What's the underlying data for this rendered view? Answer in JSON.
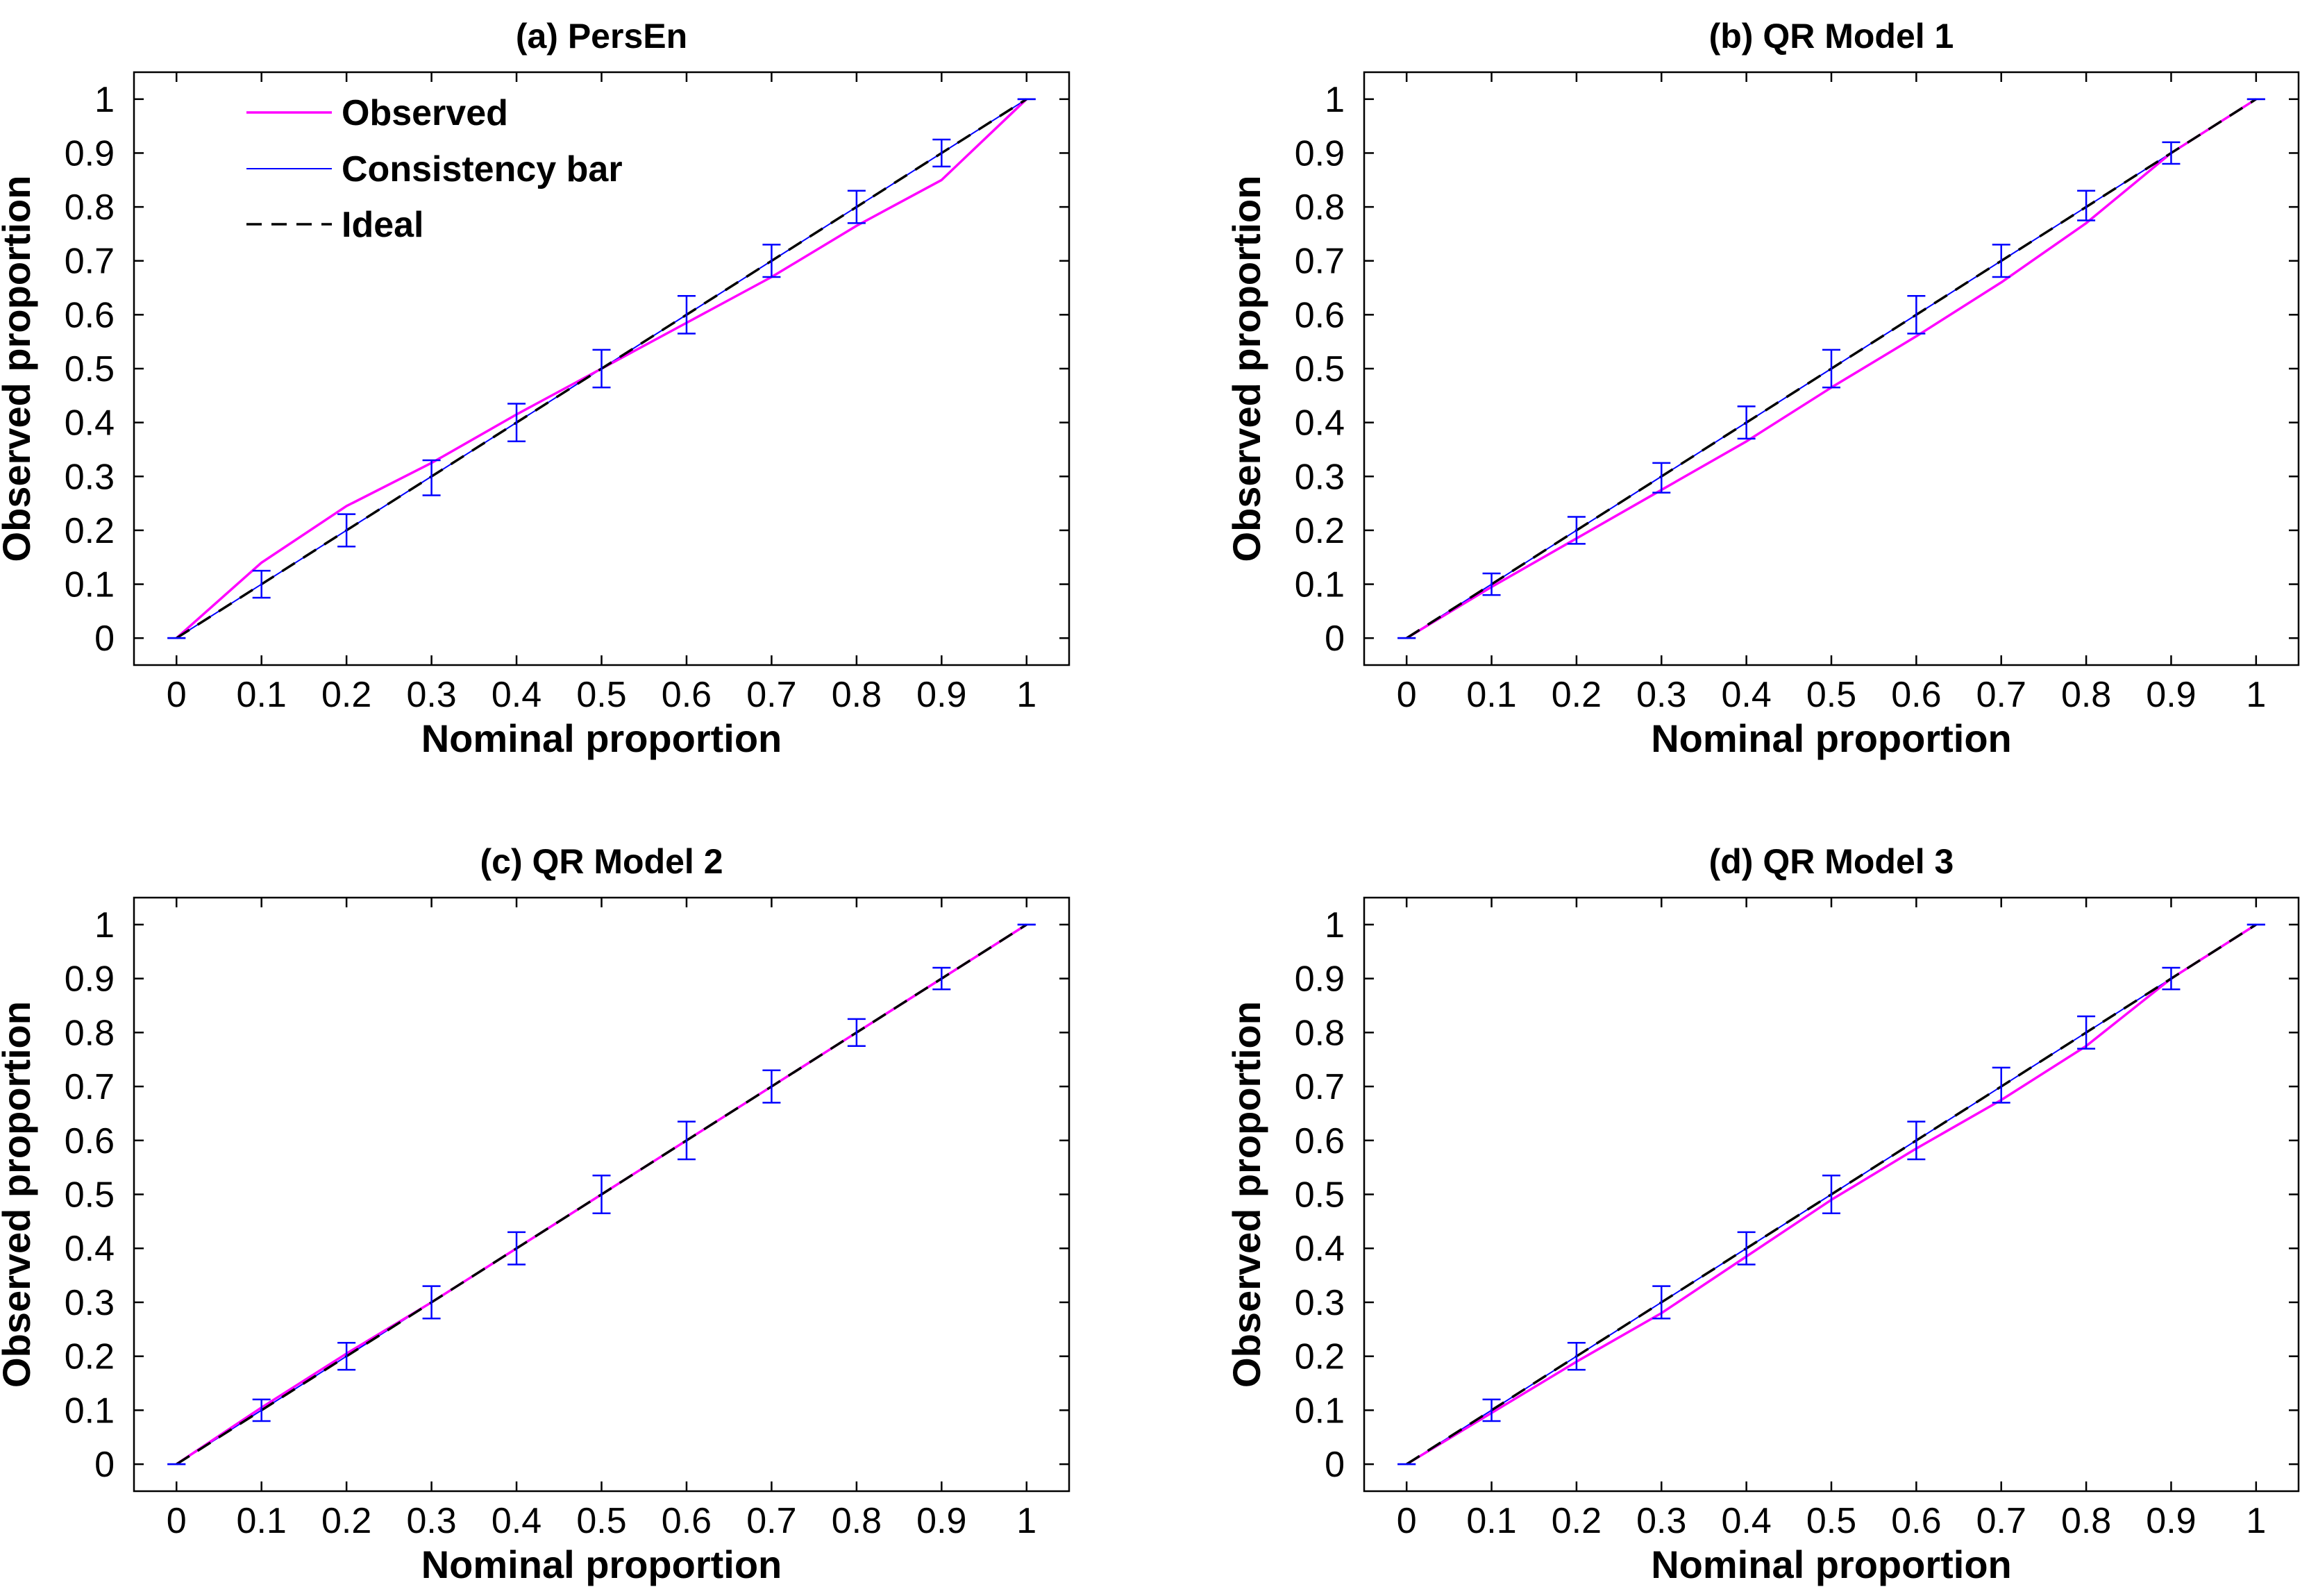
{
  "colors": {
    "observed": "#ff00ff",
    "consistency": "#0000ff",
    "ideal": "#000000",
    "axes": "#000000",
    "background": "#ffffff"
  },
  "legend": {
    "observed": "Observed",
    "consistency": "Consistency bar",
    "ideal": "Ideal"
  },
  "chart_data": [
    {
      "type": "line",
      "title": "(a) PersEn",
      "xlabel": "Nominal proportion",
      "ylabel": "Observed proportion",
      "xlim": [
        -0.05,
        1.05
      ],
      "ylim": [
        -0.05,
        1.05
      ],
      "xticks": [
        0,
        0.1,
        0.2,
        0.3,
        0.4,
        0.5,
        0.6,
        0.7,
        0.8,
        0.9,
        1
      ],
      "xtick_labels": [
        "0",
        "0.1",
        "0.2",
        "0.3",
        "0.4",
        "0.5",
        "0.6",
        "0.7",
        "0.8",
        "0.9",
        "1"
      ],
      "yticks": [
        0,
        0.1,
        0.2,
        0.3,
        0.4,
        0.5,
        0.6,
        0.7,
        0.8,
        0.9,
        1
      ],
      "ytick_labels": [
        "0",
        "0.1",
        "0.2",
        "0.3",
        "0.4",
        "0.5",
        "0.6",
        "0.7",
        "0.8",
        "0.9",
        "1"
      ],
      "legend_visible": true,
      "legend_position": "top-left",
      "x": [
        0,
        0.1,
        0.2,
        0.3,
        0.4,
        0.5,
        0.6,
        0.7,
        0.8,
        0.9,
        1
      ],
      "series": [
        {
          "name": "Observed",
          "values": [
            0,
            0.14,
            0.245,
            0.325,
            0.415,
            0.5,
            0.585,
            0.67,
            0.765,
            0.85,
            1
          ]
        },
        {
          "name": "Ideal",
          "values": [
            0,
            0.1,
            0.2,
            0.3,
            0.4,
            0.5,
            0.6,
            0.7,
            0.8,
            0.9,
            1
          ]
        }
      ],
      "consistency_bars": {
        "center": [
          0,
          0.1,
          0.2,
          0.3,
          0.4,
          0.5,
          0.6,
          0.7,
          0.8,
          0.9,
          1
        ],
        "lower": [
          0,
          0.075,
          0.17,
          0.265,
          0.365,
          0.465,
          0.565,
          0.67,
          0.77,
          0.875,
          1
        ],
        "upper": [
          0,
          0.125,
          0.23,
          0.33,
          0.435,
          0.535,
          0.635,
          0.73,
          0.83,
          0.925,
          1
        ]
      }
    },
    {
      "type": "line",
      "title": "(b) QR Model 1",
      "xlabel": "Nominal proportion",
      "ylabel": "Observed proportion",
      "xlim": [
        -0.05,
        1.05
      ],
      "ylim": [
        -0.05,
        1.05
      ],
      "xticks": [
        0,
        0.1,
        0.2,
        0.3,
        0.4,
        0.5,
        0.6,
        0.7,
        0.8,
        0.9,
        1
      ],
      "xtick_labels": [
        "0",
        "0.1",
        "0.2",
        "0.3",
        "0.4",
        "0.5",
        "0.6",
        "0.7",
        "0.8",
        "0.9",
        "1"
      ],
      "yticks": [
        0,
        0.1,
        0.2,
        0.3,
        0.4,
        0.5,
        0.6,
        0.7,
        0.8,
        0.9,
        1
      ],
      "ytick_labels": [
        "0",
        "0.1",
        "0.2",
        "0.3",
        "0.4",
        "0.5",
        "0.6",
        "0.7",
        "0.8",
        "0.9",
        "1"
      ],
      "legend_visible": false,
      "x": [
        0,
        0.1,
        0.2,
        0.3,
        0.4,
        0.5,
        0.6,
        0.7,
        0.8,
        0.9,
        1
      ],
      "series": [
        {
          "name": "Observed",
          "values": [
            0,
            0.095,
            0.185,
            0.275,
            0.365,
            0.465,
            0.56,
            0.66,
            0.77,
            0.9,
            1
          ]
        },
        {
          "name": "Ideal",
          "values": [
            0,
            0.1,
            0.2,
            0.3,
            0.4,
            0.5,
            0.6,
            0.7,
            0.8,
            0.9,
            1
          ]
        }
      ],
      "consistency_bars": {
        "center": [
          0,
          0.1,
          0.2,
          0.3,
          0.4,
          0.5,
          0.6,
          0.7,
          0.8,
          0.9,
          1
        ],
        "lower": [
          0,
          0.08,
          0.175,
          0.27,
          0.37,
          0.465,
          0.565,
          0.67,
          0.775,
          0.88,
          1
        ],
        "upper": [
          0,
          0.12,
          0.225,
          0.325,
          0.43,
          0.535,
          0.635,
          0.73,
          0.83,
          0.92,
          1
        ]
      }
    },
    {
      "type": "line",
      "title": "(c) QR Model 2",
      "xlabel": "Nominal proportion",
      "ylabel": "Observed proportion",
      "xlim": [
        -0.05,
        1.05
      ],
      "ylim": [
        -0.05,
        1.05
      ],
      "xticks": [
        0,
        0.1,
        0.2,
        0.3,
        0.4,
        0.5,
        0.6,
        0.7,
        0.8,
        0.9,
        1
      ],
      "xtick_labels": [
        "0",
        "0.1",
        "0.2",
        "0.3",
        "0.4",
        "0.5",
        "0.6",
        "0.7",
        "0.8",
        "0.9",
        "1"
      ],
      "yticks": [
        0,
        0.1,
        0.2,
        0.3,
        0.4,
        0.5,
        0.6,
        0.7,
        0.8,
        0.9,
        1
      ],
      "ytick_labels": [
        "0",
        "0.1",
        "0.2",
        "0.3",
        "0.4",
        "0.5",
        "0.6",
        "0.7",
        "0.8",
        "0.9",
        "1"
      ],
      "legend_visible": false,
      "x": [
        0,
        0.1,
        0.2,
        0.3,
        0.4,
        0.5,
        0.6,
        0.7,
        0.8,
        0.9,
        1
      ],
      "series": [
        {
          "name": "Observed",
          "values": [
            0,
            0.105,
            0.205,
            0.3,
            0.4,
            0.5,
            0.6,
            0.7,
            0.8,
            0.9,
            1
          ]
        },
        {
          "name": "Ideal",
          "values": [
            0,
            0.1,
            0.2,
            0.3,
            0.4,
            0.5,
            0.6,
            0.7,
            0.8,
            0.9,
            1
          ]
        }
      ],
      "consistency_bars": {
        "center": [
          0,
          0.1,
          0.2,
          0.3,
          0.4,
          0.5,
          0.6,
          0.7,
          0.8,
          0.9,
          1
        ],
        "lower": [
          0,
          0.08,
          0.175,
          0.27,
          0.37,
          0.465,
          0.565,
          0.67,
          0.775,
          0.88,
          1
        ],
        "upper": [
          0,
          0.12,
          0.225,
          0.33,
          0.43,
          0.535,
          0.635,
          0.73,
          0.825,
          0.92,
          1
        ]
      }
    },
    {
      "type": "line",
      "title": "(d) QR Model 3",
      "xlabel": "Nominal proportion",
      "ylabel": "Observed proportion",
      "xlim": [
        -0.05,
        1.05
      ],
      "ylim": [
        -0.05,
        1.05
      ],
      "xticks": [
        0,
        0.1,
        0.2,
        0.3,
        0.4,
        0.5,
        0.6,
        0.7,
        0.8,
        0.9,
        1
      ],
      "xtick_labels": [
        "0",
        "0.1",
        "0.2",
        "0.3",
        "0.4",
        "0.5",
        "0.6",
        "0.7",
        "0.8",
        "0.9",
        "1"
      ],
      "yticks": [
        0,
        0.1,
        0.2,
        0.3,
        0.4,
        0.5,
        0.6,
        0.7,
        0.8,
        0.9,
        1
      ],
      "ytick_labels": [
        "0",
        "0.1",
        "0.2",
        "0.3",
        "0.4",
        "0.5",
        "0.6",
        "0.7",
        "0.8",
        "0.9",
        "1"
      ],
      "legend_visible": false,
      "x": [
        0,
        0.1,
        0.2,
        0.3,
        0.4,
        0.5,
        0.6,
        0.7,
        0.8,
        0.9,
        1
      ],
      "series": [
        {
          "name": "Observed",
          "values": [
            0,
            0.095,
            0.19,
            0.28,
            0.385,
            0.49,
            0.585,
            0.675,
            0.775,
            0.9,
            1
          ]
        },
        {
          "name": "Ideal",
          "values": [
            0,
            0.1,
            0.2,
            0.3,
            0.4,
            0.5,
            0.6,
            0.7,
            0.8,
            0.9,
            1
          ]
        }
      ],
      "consistency_bars": {
        "center": [
          0,
          0.1,
          0.2,
          0.3,
          0.4,
          0.5,
          0.6,
          0.7,
          0.8,
          0.9,
          1
        ],
        "lower": [
          0,
          0.08,
          0.175,
          0.27,
          0.37,
          0.465,
          0.565,
          0.67,
          0.77,
          0.88,
          1
        ],
        "upper": [
          0,
          0.12,
          0.225,
          0.33,
          0.43,
          0.535,
          0.635,
          0.735,
          0.83,
          0.92,
          1
        ]
      }
    }
  ]
}
